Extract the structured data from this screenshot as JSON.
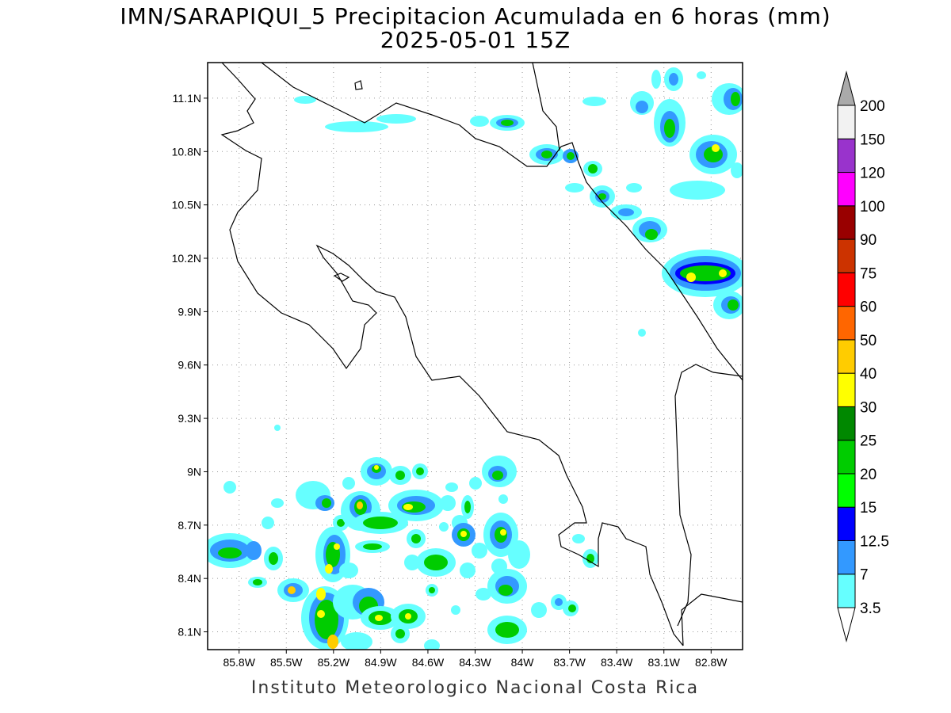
{
  "title": {
    "line1": "IMN/SARAPIQUI_5 Precipitacion Acumulada en 6 horas (mm)",
    "line2": "2025-05-01 15Z"
  },
  "footer": "Instituto Meteorologico Nacional Costa Rica",
  "map": {
    "lon_range": [
      -86.0,
      -82.6
    ],
    "lat_range": [
      8.0,
      11.3
    ],
    "lat_ticks": [
      "11.1N",
      "10.8N",
      "10.5N",
      "10.2N",
      "9.9N",
      "9.6N",
      "9.3N",
      "9N",
      "8.7N",
      "8.4N",
      "8.1N"
    ],
    "lon_ticks": [
      "85.8W",
      "85.5W",
      "85.2W",
      "84.9W",
      "84.6W",
      "84.3W",
      "84W",
      "83.7W",
      "83.4W",
      "83.1W",
      "82.8W"
    ],
    "grid": "dotted"
  },
  "colorbar": {
    "labels": [
      "3.5",
      "7",
      "12.5",
      "15",
      "20",
      "25",
      "30",
      "40",
      "50",
      "60",
      "75",
      "90",
      "100",
      "120",
      "150",
      "200"
    ],
    "colors": [
      "#66ffff",
      "#3399ff",
      "#0000ff",
      "#00ff00",
      "#00cc00",
      "#008800",
      "#ffff00",
      "#ffcc00",
      "#ff6600",
      "#ff0000",
      "#cc3300",
      "#990000",
      "#ff00ff",
      "#9933cc",
      "#f2f2f2",
      "#aaaaaa"
    ]
  }
}
